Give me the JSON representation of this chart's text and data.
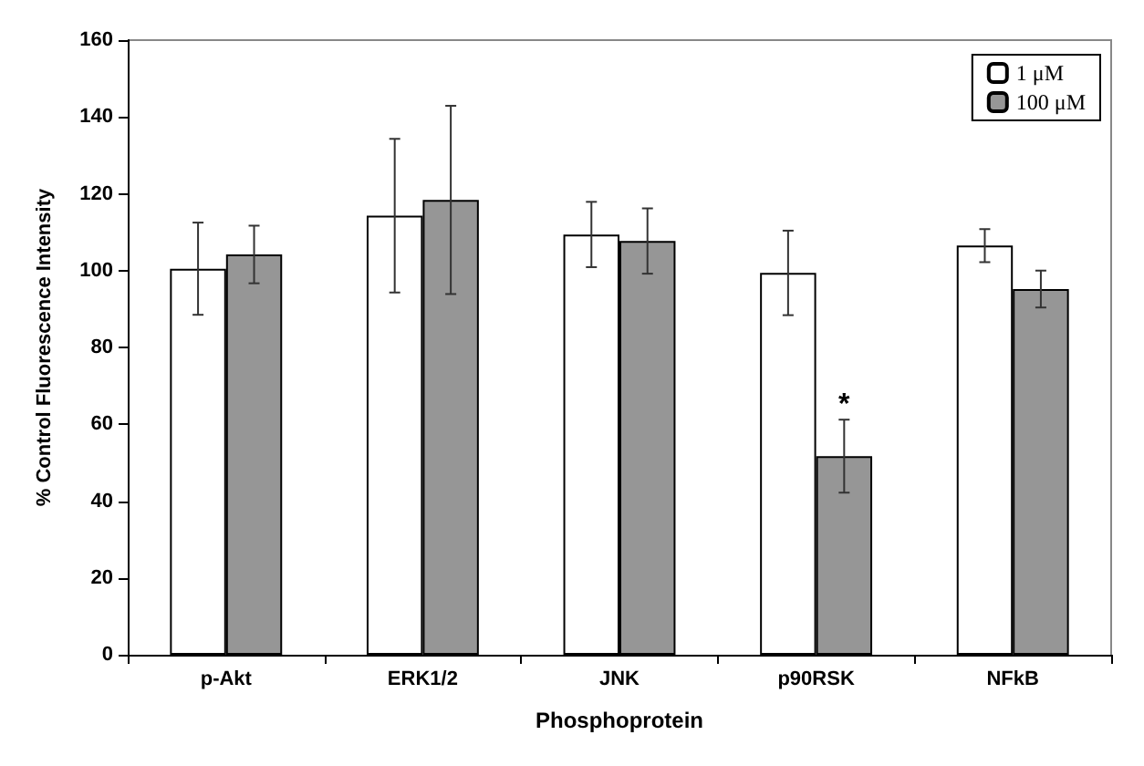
{
  "chart_data": {
    "type": "bar",
    "xlabel": "Phosphoprotein",
    "ylabel": "% Control Fluorescence Intensity",
    "categories": [
      "p-Akt",
      "ERK1/2",
      "JNK",
      "p90RSK",
      "NFkB"
    ],
    "series": [
      {
        "name": "1 μM",
        "color": "#ffffff",
        "values": [
          100.5,
          114.3,
          109.4,
          99.4,
          106.5
        ],
        "errors": [
          12,
          20,
          8.5,
          11,
          4.3
        ]
      },
      {
        "name": "100 μM",
        "color": "#969696",
        "values": [
          104.2,
          118.4,
          107.7,
          51.7,
          95.2
        ],
        "errors": [
          7.5,
          24.5,
          8.5,
          9.5,
          4.8
        ]
      }
    ],
    "ylim": [
      0,
      160
    ],
    "yticks": [
      0,
      20,
      40,
      60,
      80,
      100,
      120,
      140,
      160
    ],
    "grid": false,
    "legend": "top right",
    "annotations": [
      {
        "text": "*",
        "x": "p90RSK",
        "y": 65
      }
    ]
  }
}
